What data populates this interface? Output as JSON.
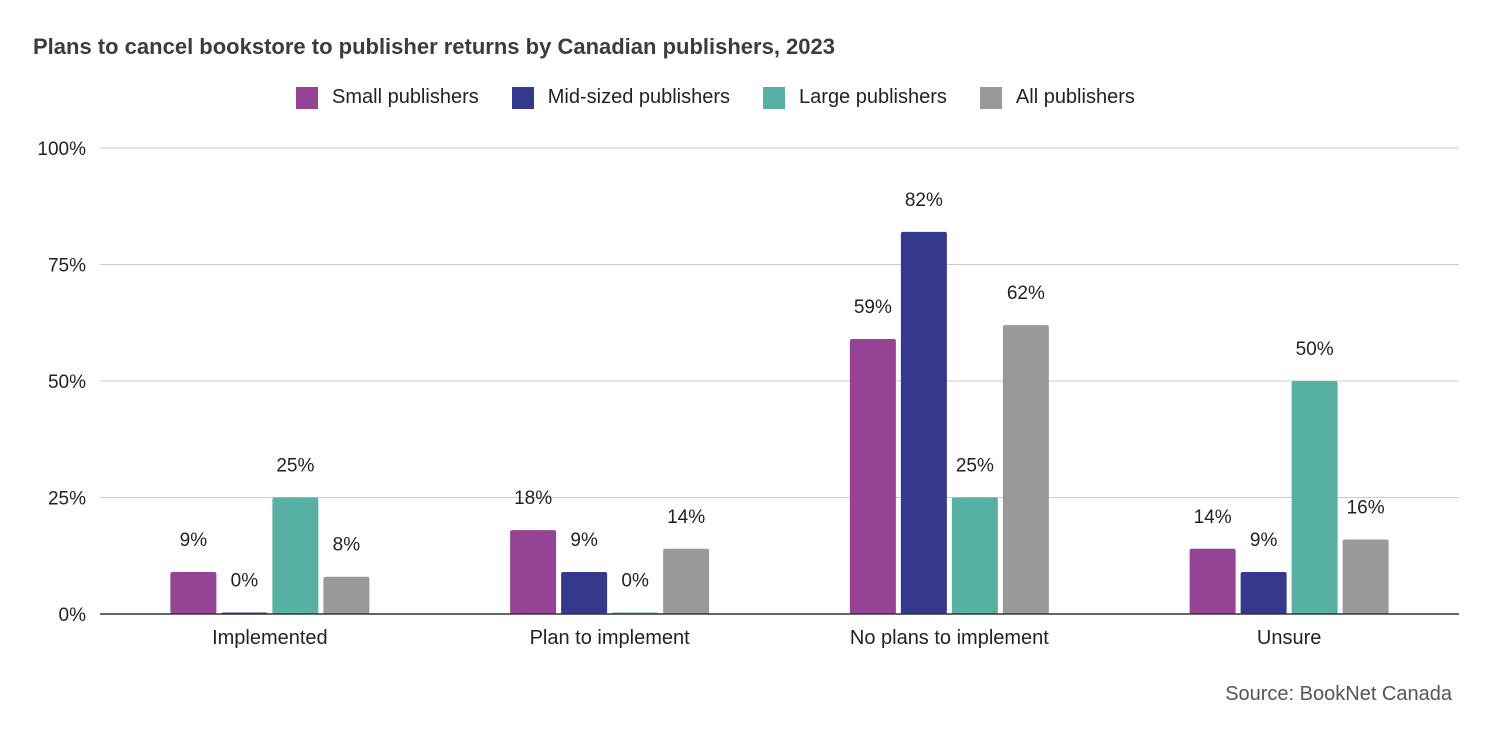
{
  "title": "Plans to cancel bookstore to publisher returns by Canadian publishers, 2023",
  "source": "Source: BookNet Canada",
  "chart_data": {
    "type": "bar",
    "title": "Plans to cancel bookstore to publisher returns by Canadian publishers, 2023",
    "xlabel": "",
    "ylabel": "",
    "ylim": [
      0,
      100
    ],
    "yticks": [
      "0%",
      "25%",
      "50%",
      "75%",
      "100%"
    ],
    "ytick_values": [
      0,
      25,
      50,
      75,
      100
    ],
    "grid": true,
    "legend_position": "top",
    "categories": [
      "Implemented",
      "Plan to implement",
      "No plans to implement",
      "Unsure"
    ],
    "series": [
      {
        "name": "Small publishers",
        "color": "#954395",
        "values": [
          9,
          18,
          59,
          14
        ],
        "labels": [
          "9%",
          "18%",
          "59%",
          "14%"
        ]
      },
      {
        "name": "Mid-sized publishers",
        "color": "#35398e",
        "values": [
          0,
          9,
          82,
          9
        ],
        "labels": [
          "0%",
          "9%",
          "82%",
          "9%"
        ]
      },
      {
        "name": "Large publishers",
        "color": "#57b0a4",
        "values": [
          25,
          0,
          25,
          50
        ],
        "labels": [
          "25%",
          "0%",
          "25%",
          "50%"
        ]
      },
      {
        "name": "All publishers",
        "color": "#999999",
        "values": [
          8,
          14,
          62,
          16
        ],
        "labels": [
          "8%",
          "14%",
          "62%",
          "16%"
        ]
      }
    ]
  }
}
